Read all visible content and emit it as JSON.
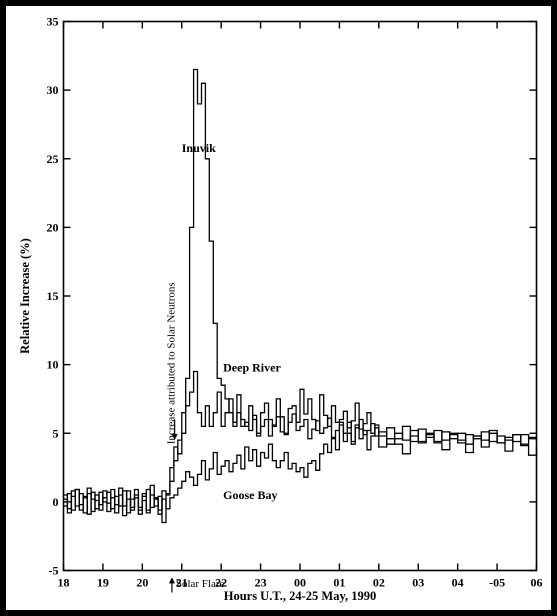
{
  "chart_data": {
    "type": "line",
    "title": "",
    "xlabel": "Hours U.T.,  24-25 May, 1990",
    "ylabel": "Relative Increase (%)",
    "xlim": [
      18,
      30
    ],
    "ylim": [
      -5,
      35
    ],
    "x_ticks": [
      18,
      19,
      20,
      21,
      22,
      23,
      24,
      25,
      26,
      27,
      28,
      29,
      30
    ],
    "x_tick_labels": [
      "18",
      "19",
      "20",
      "21",
      "22",
      "23",
      "00",
      "01",
      "02",
      "03",
      "04",
      "-05",
      "06"
    ],
    "y_ticks": [
      -5,
      0,
      5,
      10,
      15,
      20,
      25,
      30,
      35
    ],
    "y_tick_labels": [
      "-5",
      "0",
      "5",
      "10",
      "15",
      "20",
      "25",
      "30",
      "35"
    ],
    "grid": false,
    "step": true,
    "series": [
      {
        "name": "Inuvik",
        "x": [
          18.0,
          18.1,
          18.2,
          18.3,
          18.4,
          18.5,
          18.6,
          18.7,
          18.8,
          18.9,
          19.0,
          19.1,
          19.2,
          19.3,
          19.4,
          19.5,
          19.6,
          19.7,
          19.8,
          19.9,
          20.0,
          20.1,
          20.2,
          20.3,
          20.4,
          20.5,
          20.6,
          20.7,
          20.8,
          20.9,
          21.0,
          21.1,
          21.2,
          21.3,
          21.4,
          21.5,
          21.6,
          21.7,
          21.8,
          21.9,
          22.0,
          22.1,
          22.2,
          22.3,
          22.4,
          22.5,
          22.6,
          22.7,
          22.8,
          22.9,
          23.0,
          23.1,
          23.2,
          23.3,
          23.4,
          23.5,
          23.6,
          23.7,
          23.8,
          23.9,
          24.0,
          24.1,
          24.2,
          24.3,
          24.4,
          24.5,
          24.6,
          24.7,
          24.8,
          24.9,
          25.0,
          25.1,
          25.2,
          25.3,
          25.4,
          25.5,
          25.6,
          25.7,
          25.8,
          25.9,
          26.0,
          26.2,
          26.4,
          26.6,
          26.8,
          27.0,
          27.2,
          27.4,
          27.6,
          27.8,
          28.0,
          28.2,
          28.4,
          28.6,
          28.8,
          29.0,
          29.2,
          29.4,
          29.6,
          29.8,
          30.0
        ],
        "y": [
          0.5,
          -0.5,
          0.8,
          -0.3,
          0.6,
          -0.8,
          1.0,
          0.2,
          -0.5,
          0.7,
          0.0,
          -0.7,
          0.9,
          -0.2,
          0.5,
          -1.0,
          0.8,
          -0.4,
          0.3,
          -0.9,
          0.6,
          -0.6,
          1.2,
          -0.3,
          0.4,
          -1.5,
          0.6,
          1.5,
          3.0,
          4.5,
          5.0,
          9.0,
          20.0,
          31.5,
          29.0,
          30.5,
          25.0,
          19.0,
          13.0,
          9.0,
          8.5,
          7.5,
          6.5,
          5.8,
          6.5,
          5.5,
          5.8,
          5.2,
          6.3,
          5.0,
          5.5,
          6.0,
          4.8,
          5.6,
          6.2,
          5.1,
          4.9,
          5.8,
          6.4,
          5.2,
          5.5,
          6.0,
          4.6,
          5.3,
          5.9,
          5.0,
          5.4,
          6.1,
          4.7,
          5.2,
          5.6,
          5.0,
          5.8,
          4.4,
          5.4,
          6.0,
          4.9,
          5.2,
          5.7,
          4.8,
          5.1,
          4.2,
          5.0,
          4.5,
          5.2,
          4.3,
          4.9,
          4.4,
          5.1,
          4.6,
          5.0,
          4.2,
          4.8,
          4.5,
          5.0,
          4.3,
          4.7,
          4.4,
          4.9,
          4.6,
          4.5
        ]
      },
      {
        "name": "Deep River",
        "x": [
          18.0,
          18.1,
          18.2,
          18.3,
          18.4,
          18.5,
          18.6,
          18.7,
          18.8,
          18.9,
          19.0,
          19.1,
          19.2,
          19.3,
          19.4,
          19.5,
          19.6,
          19.7,
          19.8,
          19.9,
          20.0,
          20.1,
          20.2,
          20.3,
          20.4,
          20.5,
          20.6,
          20.7,
          20.8,
          20.9,
          21.0,
          21.1,
          21.2,
          21.3,
          21.4,
          21.5,
          21.6,
          21.7,
          21.8,
          21.9,
          22.0,
          22.1,
          22.2,
          22.3,
          22.4,
          22.5,
          22.6,
          22.7,
          22.8,
          22.9,
          23.0,
          23.1,
          23.2,
          23.3,
          23.4,
          23.5,
          23.6,
          23.7,
          23.8,
          23.9,
          24.0,
          24.1,
          24.2,
          24.3,
          24.4,
          24.5,
          24.6,
          24.7,
          24.8,
          24.9,
          25.0,
          25.1,
          25.2,
          25.3,
          25.4,
          25.5,
          25.6,
          25.7,
          25.8,
          25.9,
          26.0,
          26.2,
          26.4,
          26.6,
          26.8,
          27.0,
          27.2,
          27.4,
          27.6,
          27.8,
          28.0,
          28.2,
          28.4,
          28.6,
          28.8,
          29.0,
          29.2,
          29.4,
          29.6,
          29.8,
          30.0
        ],
        "y": [
          -0.3,
          0.6,
          -0.6,
          0.9,
          -0.2,
          0.4,
          -0.9,
          0.7,
          0.1,
          -0.6,
          0.8,
          -0.1,
          0.3,
          -0.8,
          1.0,
          -0.3,
          0.2,
          -0.6,
          0.9,
          -0.4,
          0.1,
          -0.8,
          0.5,
          0.2,
          -0.6,
          0.8,
          0.5,
          2.5,
          4.0,
          3.5,
          6.5,
          7.0,
          8.0,
          9.5,
          6.5,
          5.5,
          7.0,
          5.5,
          6.5,
          8.0,
          5.5,
          6.5,
          7.5,
          5.5,
          7.8,
          6.0,
          5.5,
          7.0,
          6.0,
          4.8,
          6.5,
          7.2,
          6.0,
          5.5,
          7.5,
          6.2,
          5.0,
          6.8,
          7.0,
          5.8,
          8.2,
          6.4,
          7.5,
          6.0,
          5.2,
          7.8,
          6.3,
          5.5,
          7.0,
          5.8,
          6.0,
          6.6,
          5.4,
          5.9,
          7.2,
          5.3,
          5.7,
          6.5,
          5.0,
          5.6,
          4.8,
          5.4,
          4.6,
          5.5,
          4.4,
          5.3,
          4.7,
          5.2,
          4.5,
          5.0,
          4.3,
          4.9,
          4.6,
          5.1,
          4.4,
          4.8,
          4.5,
          4.9,
          4.2,
          4.7,
          4.5
        ]
      },
      {
        "name": "Goose Bay",
        "x": [
          18.0,
          18.1,
          18.2,
          18.3,
          18.4,
          18.5,
          18.6,
          18.7,
          18.8,
          18.9,
          19.0,
          19.1,
          19.2,
          19.3,
          19.4,
          19.5,
          19.6,
          19.7,
          19.8,
          19.9,
          20.0,
          20.1,
          20.2,
          20.3,
          20.4,
          20.5,
          20.6,
          20.7,
          20.8,
          20.9,
          21.0,
          21.1,
          21.2,
          21.3,
          21.4,
          21.5,
          21.6,
          21.7,
          21.8,
          21.9,
          22.0,
          22.1,
          22.2,
          22.3,
          22.4,
          22.5,
          22.6,
          22.7,
          22.8,
          22.9,
          23.0,
          23.1,
          23.2,
          23.3,
          23.4,
          23.5,
          23.6,
          23.7,
          23.8,
          23.9,
          24.0,
          24.1,
          24.2,
          24.3,
          24.4,
          24.5,
          24.6,
          24.7,
          24.8,
          24.9,
          25.0,
          25.1,
          25.2,
          25.3,
          25.4,
          25.5,
          25.6,
          25.7,
          25.8,
          25.9,
          26.0,
          26.2,
          26.4,
          26.6,
          26.8,
          27.0,
          27.2,
          27.4,
          27.6,
          27.8,
          28.0,
          28.2,
          28.4,
          28.6,
          28.8,
          29.0,
          29.2,
          29.4,
          29.6,
          29.8,
          30.0
        ],
        "y": [
          0.2,
          -0.8,
          0.4,
          0.9,
          -0.6,
          0.3,
          0.6,
          -0.7,
          0.5,
          -0.2,
          0.3,
          0.7,
          -0.5,
          0.4,
          -0.3,
          0.8,
          -0.8,
          0.2,
          0.5,
          -0.6,
          0.4,
          0.9,
          -0.4,
          0.3,
          -0.9,
          0.2,
          -0.5,
          0.3,
          0.5,
          1.0,
          1.5,
          2.2,
          1.8,
          1.2,
          2.0,
          3.0,
          1.6,
          2.4,
          3.6,
          2.0,
          2.6,
          3.0,
          2.2,
          2.8,
          3.4,
          2.4,
          4.0,
          3.0,
          3.8,
          2.6,
          3.6,
          3.2,
          4.2,
          3.0,
          2.5,
          3.0,
          3.6,
          2.4,
          2.8,
          2.2,
          2.5,
          1.8,
          2.8,
          3.0,
          2.3,
          3.5,
          4.2,
          3.6,
          4.6,
          3.8,
          5.8,
          4.4,
          5.0,
          4.2,
          5.6,
          4.6,
          5.2,
          3.8,
          4.8,
          5.4,
          4.0,
          4.6,
          4.2,
          3.5,
          4.8,
          4.4,
          5.0,
          4.3,
          3.8,
          4.9,
          4.5,
          3.6,
          4.8,
          4.0,
          5.2,
          4.3,
          3.7,
          4.9,
          4.1,
          3.4,
          4.0
        ]
      }
    ],
    "annotations": [
      {
        "text": "Inuvik",
        "x": 21.0,
        "y": 25.5
      },
      {
        "text": "Deep River",
        "x": 22.05,
        "y": 9.5
      },
      {
        "text": "Goose Bay",
        "x": 22.05,
        "y": 0.2
      },
      {
        "text": "Increase attributed to Solar Neutrons",
        "x": 20.82,
        "y": 4.2
      },
      {
        "text": "Solar Flare",
        "x": 20.85,
        "y": -6.2
      }
    ],
    "flare_arrow": {
      "x": 20.75,
      "y_from": -6.6,
      "y_to": -5.5
    },
    "neutron_arrow": {
      "x": 20.82,
      "y_from": 6.0,
      "y_to": 4.5
    }
  }
}
